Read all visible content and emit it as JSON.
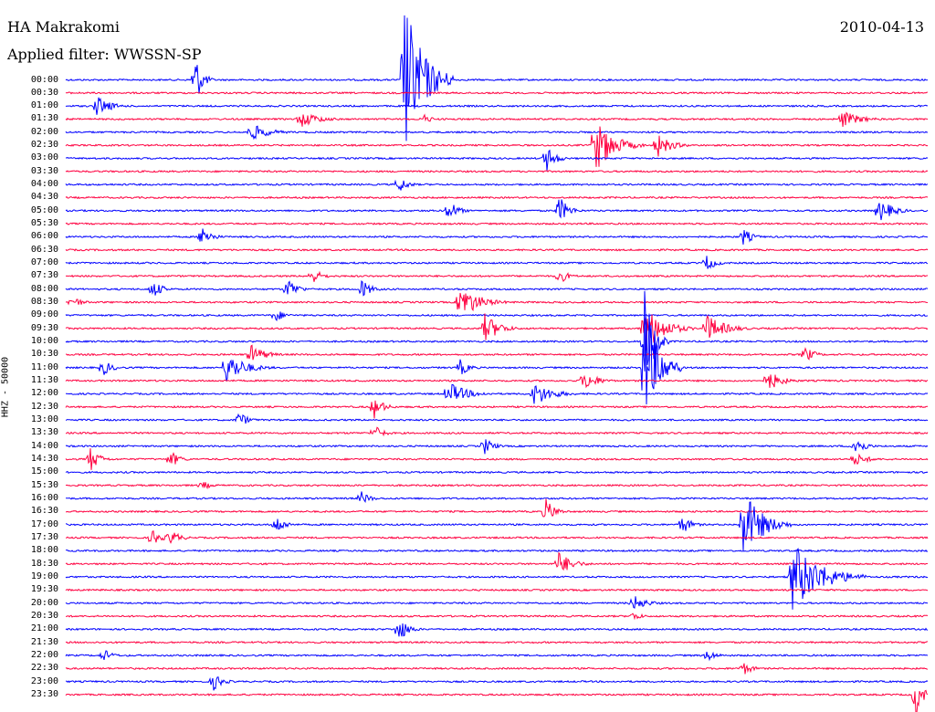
{
  "header": {
    "station": "HA Makrakomi",
    "date": "2010-04-13",
    "filter_label": "Applied filter: WWSSN-SP"
  },
  "channel_label": "HHZ - 50000",
  "colors": {
    "even_trace": "#0000ff",
    "odd_trace": "#ff0040",
    "background": "#ffffff"
  },
  "chart_data": {
    "type": "line",
    "title": "",
    "ylabel": "HHZ - 50000",
    "row_interval_minutes": 30,
    "trace_colors": [
      "#0000ff",
      "#ff0040"
    ],
    "rows": [
      "00:00",
      "00:30",
      "01:00",
      "01:30",
      "02:00",
      "02:30",
      "03:00",
      "03:30",
      "04:00",
      "04:30",
      "05:00",
      "05:30",
      "06:00",
      "06:30",
      "07:00",
      "07:30",
      "08:00",
      "08:30",
      "09:00",
      "09:30",
      "10:00",
      "10:30",
      "11:00",
      "11:30",
      "12:00",
      "12:30",
      "13:00",
      "13:30",
      "14:00",
      "14:30",
      "15:00",
      "15:30",
      "16:00",
      "16:30",
      "17:00",
      "17:30",
      "18:00",
      "18:30",
      "19:00",
      "19:30",
      "20:00",
      "20:30",
      "21:00",
      "21:30",
      "22:00",
      "22:30",
      "23:00",
      "23:30"
    ],
    "events": [
      {
        "row": 0,
        "minute": 27.5,
        "amplitude": 90,
        "duration_min": 4
      },
      {
        "row": 0,
        "minute": 10.5,
        "amplitude": 30,
        "duration_min": 1.5
      },
      {
        "row": 2,
        "minute": 2.5,
        "amplitude": 12,
        "duration_min": 3
      },
      {
        "row": 3,
        "minute": 19,
        "amplitude": 10,
        "duration_min": 4
      },
      {
        "row": 3,
        "minute": 29,
        "amplitude": 6,
        "duration_min": 2
      },
      {
        "row": 3,
        "minute": 63,
        "amplitude": 10,
        "duration_min": 4
      },
      {
        "row": 4,
        "minute": 15,
        "amplitude": 10,
        "duration_min": 4
      },
      {
        "row": 5,
        "minute": 43,
        "amplitude": 30,
        "duration_min": 4
      },
      {
        "row": 5,
        "minute": 48,
        "amplitude": 14,
        "duration_min": 3
      },
      {
        "row": 6,
        "minute": 39,
        "amplitude": 16,
        "duration_min": 2
      },
      {
        "row": 8,
        "minute": 27,
        "amplitude": 10,
        "duration_min": 2
      },
      {
        "row": 10,
        "minute": 31,
        "amplitude": 14,
        "duration_min": 2
      },
      {
        "row": 10,
        "minute": 40,
        "amplitude": 18,
        "duration_min": 2
      },
      {
        "row": 10,
        "minute": 66,
        "amplitude": 14,
        "duration_min": 3
      },
      {
        "row": 12,
        "minute": 11,
        "amplitude": 14,
        "duration_min": 2
      },
      {
        "row": 12,
        "minute": 55,
        "amplitude": 10,
        "duration_min": 2
      },
      {
        "row": 14,
        "minute": 52,
        "amplitude": 10,
        "duration_min": 2
      },
      {
        "row": 15,
        "minute": 20,
        "amplitude": 10,
        "duration_min": 2
      },
      {
        "row": 15,
        "minute": 40,
        "amplitude": 10,
        "duration_min": 2
      },
      {
        "row": 16,
        "minute": 7,
        "amplitude": 12,
        "duration_min": 2
      },
      {
        "row": 16,
        "minute": 18,
        "amplitude": 14,
        "duration_min": 2
      },
      {
        "row": 16,
        "minute": 24,
        "amplitude": 12,
        "duration_min": 2
      },
      {
        "row": 17,
        "minute": 0.5,
        "amplitude": 8,
        "duration_min": 2
      },
      {
        "row": 17,
        "minute": 32,
        "amplitude": 20,
        "duration_min": 4
      },
      {
        "row": 18,
        "minute": 17,
        "amplitude": 8,
        "duration_min": 2
      },
      {
        "row": 19,
        "minute": 34,
        "amplitude": 18,
        "duration_min": 3
      },
      {
        "row": 19,
        "minute": 47,
        "amplitude": 28,
        "duration_min": 4
      },
      {
        "row": 19,
        "minute": 52,
        "amplitude": 16,
        "duration_min": 4
      },
      {
        "row": 20,
        "minute": 47,
        "amplitude": 60,
        "duration_min": 2
      },
      {
        "row": 21,
        "minute": 15,
        "amplitude": 12,
        "duration_min": 3
      },
      {
        "row": 21,
        "minute": 60,
        "amplitude": 10,
        "duration_min": 2
      },
      {
        "row": 22,
        "minute": 3,
        "amplitude": 10,
        "duration_min": 2
      },
      {
        "row": 22,
        "minute": 13,
        "amplitude": 18,
        "duration_min": 4
      },
      {
        "row": 22,
        "minute": 32,
        "amplitude": 10,
        "duration_min": 2
      },
      {
        "row": 22,
        "minute": 47,
        "amplitude": 70,
        "duration_min": 3
      },
      {
        "row": 23,
        "minute": 42,
        "amplitude": 12,
        "duration_min": 3
      },
      {
        "row": 23,
        "minute": 57,
        "amplitude": 12,
        "duration_min": 3
      },
      {
        "row": 24,
        "minute": 31,
        "amplitude": 14,
        "duration_min": 4
      },
      {
        "row": 24,
        "minute": 38,
        "amplitude": 14,
        "duration_min": 4
      },
      {
        "row": 25,
        "minute": 25,
        "amplitude": 14,
        "duration_min": 2
      },
      {
        "row": 26,
        "minute": 14,
        "amplitude": 10,
        "duration_min": 2
      },
      {
        "row": 27,
        "minute": 25,
        "amplitude": 10,
        "duration_min": 2
      },
      {
        "row": 28,
        "minute": 34,
        "amplitude": 10,
        "duration_min": 2
      },
      {
        "row": 28,
        "minute": 64,
        "amplitude": 14,
        "duration_min": 2
      },
      {
        "row": 29,
        "minute": 2,
        "amplitude": 14,
        "duration_min": 2
      },
      {
        "row": 29,
        "minute": 8.5,
        "amplitude": 10,
        "duration_min": 2
      },
      {
        "row": 29,
        "minute": 64,
        "amplitude": 8,
        "duration_min": 3
      },
      {
        "row": 31,
        "minute": 11,
        "amplitude": 6,
        "duration_min": 2
      },
      {
        "row": 32,
        "minute": 24,
        "amplitude": 8,
        "duration_min": 2
      },
      {
        "row": 33,
        "minute": 39,
        "amplitude": 14,
        "duration_min": 2
      },
      {
        "row": 34,
        "minute": 17,
        "amplitude": 12,
        "duration_min": 2
      },
      {
        "row": 34,
        "minute": 50,
        "amplitude": 12,
        "duration_min": 2
      },
      {
        "row": 34,
        "minute": 55,
        "amplitude": 40,
        "duration_min": 4
      },
      {
        "row": 35,
        "minute": 7,
        "amplitude": 10,
        "duration_min": 2
      },
      {
        "row": 35,
        "minute": 8.5,
        "amplitude": 10,
        "duration_min": 2
      },
      {
        "row": 37,
        "minute": 40,
        "amplitude": 14,
        "duration_min": 3
      },
      {
        "row": 38,
        "minute": 59,
        "amplitude": 40,
        "duration_min": 6
      },
      {
        "row": 40,
        "minute": 46,
        "amplitude": 10,
        "duration_min": 3
      },
      {
        "row": 41,
        "minute": 46,
        "amplitude": 6,
        "duration_min": 2
      },
      {
        "row": 42,
        "minute": 27,
        "amplitude": 16,
        "duration_min": 2
      },
      {
        "row": 44,
        "minute": 3,
        "amplitude": 8,
        "duration_min": 2
      },
      {
        "row": 44,
        "minute": 52,
        "amplitude": 8,
        "duration_min": 2
      },
      {
        "row": 45,
        "minute": 55,
        "amplitude": 8,
        "duration_min": 2
      },
      {
        "row": 46,
        "minute": 12,
        "amplitude": 10,
        "duration_min": 2
      },
      {
        "row": 47,
        "minute": 69,
        "amplitude": 26,
        "duration_min": 1.5
      }
    ]
  }
}
